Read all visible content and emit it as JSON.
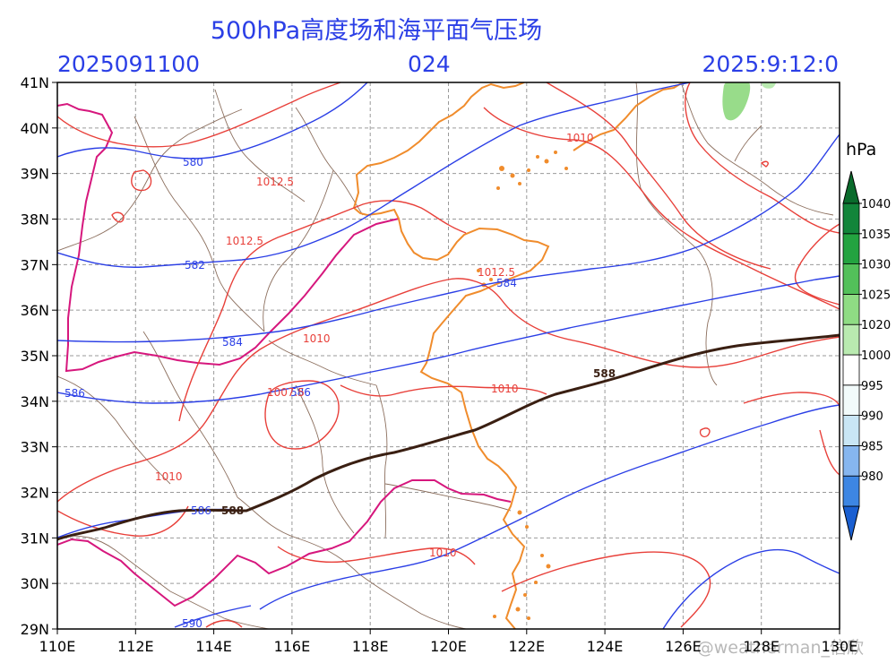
{
  "header": {
    "title": "500hPa高度场和海平面气压场",
    "init_time": "2025091100",
    "forecast_hour": "024",
    "valid_time": "2025:9:12:0"
  },
  "axes": {
    "lon_labels": [
      "110E",
      "112E",
      "114E",
      "116E",
      "118E",
      "120E",
      "122E",
      "124E",
      "126E",
      "128E",
      "130E"
    ],
    "lat_labels": [
      "29N",
      "30N",
      "31N",
      "32N",
      "33N",
      "34N",
      "35N",
      "36N",
      "37N",
      "38N",
      "39N",
      "40N",
      "41N"
    ],
    "lon_range": [
      110,
      130
    ],
    "lat_range": [
      29,
      41
    ]
  },
  "colorbar": {
    "unit": "hPa",
    "levels": [
      "980",
      "985",
      "990",
      "995",
      "1000",
      "1020",
      "1025",
      "1030",
      "1035",
      "1040"
    ],
    "colors": [
      "#1a5fd1",
      "#3d86e3",
      "#86b6ef",
      "#c9e6f5",
      "#f2fbfb",
      "#ffffff",
      "#b9eab0",
      "#8fdc84",
      "#53c05a",
      "#23a340",
      "#12853a",
      "#0a6b2c"
    ]
  },
  "height_contours": [
    {
      "label": "580",
      "color": "#2b3fe6"
    },
    {
      "label": "582",
      "color": "#2b3fe6"
    },
    {
      "label": "584",
      "color": "#2b3fe6"
    },
    {
      "label": "586",
      "color": "#2b3fe6"
    },
    {
      "label": "588",
      "color": "#3a1f12"
    },
    {
      "label": "590",
      "color": "#2b3fe6"
    }
  ],
  "pressure_contours": [
    {
      "label": "1012.5",
      "color": "#e8403a"
    },
    {
      "label": "1010",
      "color": "#e8403a"
    },
    {
      "label": "1007.5",
      "color": "#e8403a"
    }
  ],
  "watermark": "@weatherman_信欣"
}
